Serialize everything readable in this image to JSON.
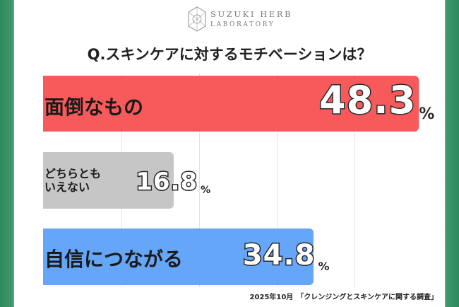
{
  "logo": {
    "line1": "SUZUKI HERB",
    "line2": "LABORATORY"
  },
  "chart_data": {
    "type": "bar",
    "orientation": "horizontal",
    "title": "Q.スキンケアに対するモチベーションは？",
    "categories": [
      "面倒なもの",
      "どちらとも\nいえない",
      "自信につながる"
    ],
    "values": [
      48.3,
      16.8,
      34.8
    ],
    "value_labels": [
      "48.3",
      "16.8",
      "34.8"
    ],
    "unit": "%",
    "bar_colors": [
      "#f85a5c",
      "#c6c6c6",
      "#66a6f8"
    ],
    "xlim": [
      0,
      50
    ],
    "grid": true
  },
  "source": "2025年10月　「クレンジングとスキンケアに関する調査」"
}
